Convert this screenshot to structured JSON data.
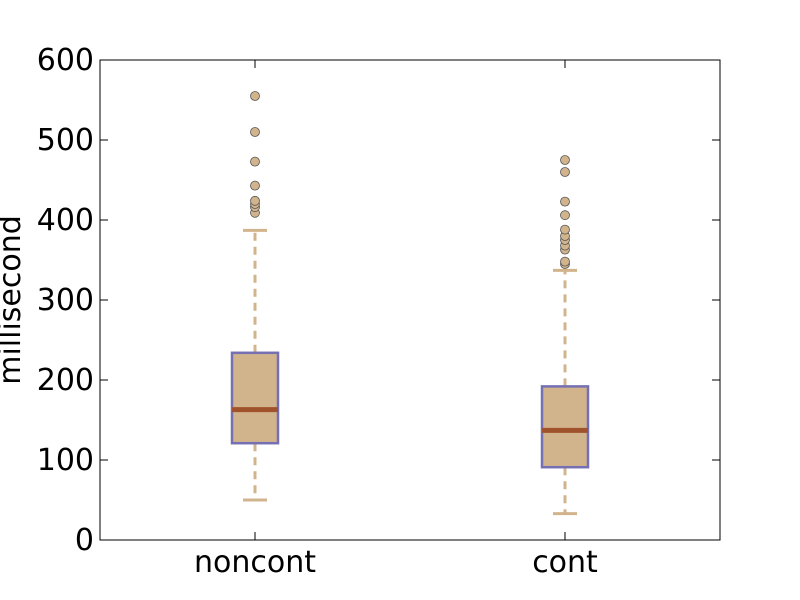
{
  "chart_data": {
    "type": "box",
    "title": "",
    "xlabel": "",
    "ylabel": "millisecond",
    "ylim": [
      0,
      600
    ],
    "yticks": [
      0,
      100,
      200,
      300,
      400,
      500,
      600
    ],
    "categories": [
      "noncont",
      "cont"
    ],
    "boxes": [
      {
        "category": "noncont",
        "whisker_low": 50,
        "q1": 121,
        "median": 163,
        "q3": 234,
        "whisker_high": 387,
        "outliers": [
          409,
          416,
          420,
          424,
          443,
          473,
          510,
          555
        ]
      },
      {
        "category": "cont",
        "whisker_low": 33,
        "q1": 91,
        "median": 137,
        "q3": 192,
        "whisker_high": 337,
        "outliers": [
          345,
          348,
          363,
          368,
          375,
          380,
          388,
          406,
          423,
          460,
          475
        ]
      }
    ],
    "grid": false,
    "colors": {
      "box_fill": "#d2b48c",
      "box_edge": "#7570b3",
      "median": "#a0522d",
      "whisker": "#d2b48c",
      "flier_fill": "#d2b48c",
      "flier_edge": "#555555"
    }
  }
}
